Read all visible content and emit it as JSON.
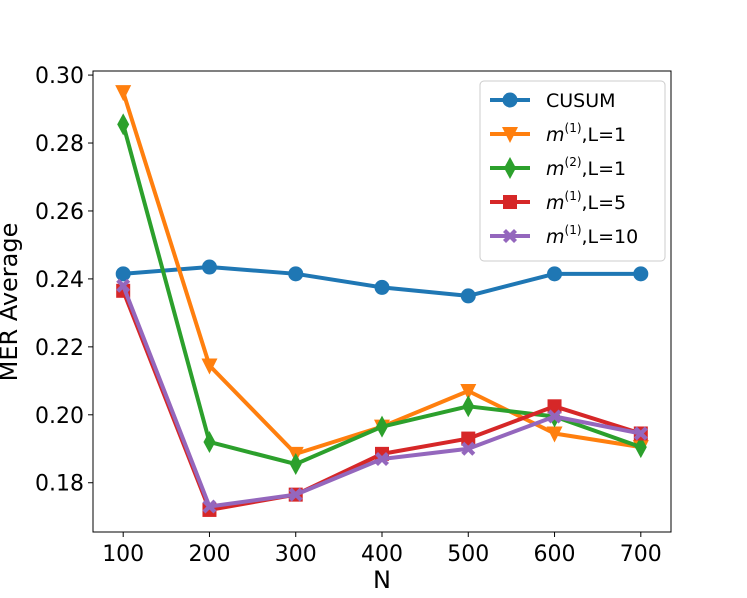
{
  "chart_data": {
    "type": "line",
    "title": "",
    "xlabel": "N",
    "ylabel": "MER Average",
    "x": [
      100,
      200,
      300,
      400,
      500,
      600,
      700
    ],
    "xticks": [
      "100",
      "200",
      "300",
      "400",
      "500",
      "600",
      "700"
    ],
    "yticks": [
      "0.18",
      "0.20",
      "0.22",
      "0.24",
      "0.26",
      "0.28",
      "0.30"
    ],
    "xlim": [
      65,
      735
    ],
    "ylim": [
      0.1655,
      0.3012
    ],
    "grid": false,
    "legend_position": "top-right",
    "series": [
      {
        "name": "CUSUM",
        "legend_main": "CUSUM",
        "legend_sup": "",
        "legend_tail": "",
        "color": "#1f77b4",
        "marker": "circle",
        "values": [
          0.2415,
          0.2435,
          0.2415,
          0.2375,
          0.235,
          0.2415,
          0.2415
        ]
      },
      {
        "name": "m(1),L=1",
        "legend_main": "m",
        "legend_sup": "(1)",
        "legend_tail": ",L=1",
        "color": "#ff7f0e",
        "marker": "triangle-down",
        "values": [
          0.295,
          0.2145,
          0.1885,
          0.1965,
          0.207,
          0.1945,
          0.1905
        ]
      },
      {
        "name": "m(2),L=1",
        "legend_main": "m",
        "legend_sup": "(2)",
        "legend_tail": ",L=1",
        "color": "#2ca02c",
        "marker": "diamond",
        "values": [
          0.2855,
          0.192,
          0.1855,
          0.1965,
          0.2025,
          0.1995,
          0.1905
        ]
      },
      {
        "name": "m(1),L=5",
        "legend_main": "m",
        "legend_sup": "(1)",
        "legend_tail": ",L=5",
        "color": "#d62728",
        "marker": "square",
        "values": [
          0.2365,
          0.172,
          0.1765,
          0.1885,
          0.193,
          0.2025,
          0.1945
        ]
      },
      {
        "name": "m(1),L=10",
        "legend_main": "m",
        "legend_sup": "(1)",
        "legend_tail": ",L=10",
        "color": "#9467bd",
        "marker": "x-filled",
        "values": [
          0.238,
          0.173,
          0.1765,
          0.187,
          0.19,
          0.1995,
          0.1945
        ]
      }
    ]
  }
}
